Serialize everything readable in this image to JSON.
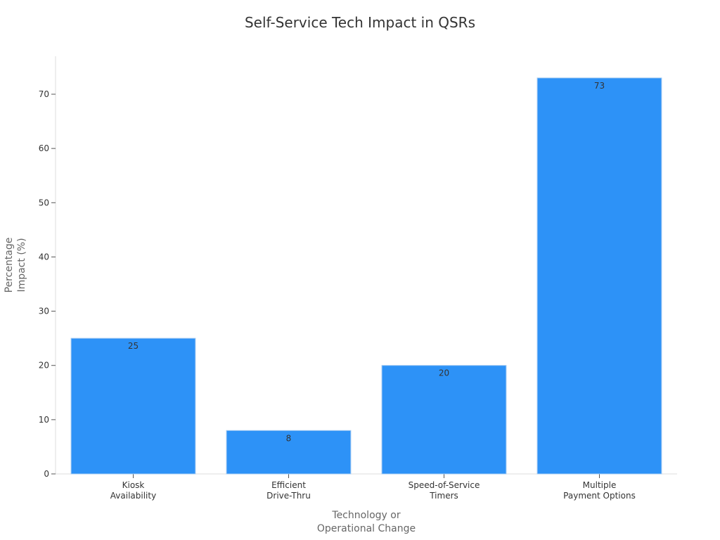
{
  "chart_data": {
    "type": "bar",
    "title": "Self-Service Tech Impact in QSRs",
    "xlabel": [
      "Technology or",
      "Operational Change"
    ],
    "ylabel": [
      "Percentage",
      "Impact (%)"
    ],
    "categories": [
      [
        "Kiosk",
        "Availability"
      ],
      [
        "Efficient",
        "Drive-Thru"
      ],
      [
        "Speed-of-Service",
        "Timers"
      ],
      [
        "Multiple",
        "Payment Options"
      ]
    ],
    "values": [
      25,
      8,
      20,
      73
    ],
    "data_labels": [
      "25",
      "8",
      "20",
      "73"
    ],
    "yticks": [
      0,
      10,
      20,
      30,
      40,
      50,
      60,
      70
    ],
    "ylim": [
      0,
      77
    ],
    "bar_color": "#2d92f7",
    "grid": false,
    "legend": "none"
  }
}
